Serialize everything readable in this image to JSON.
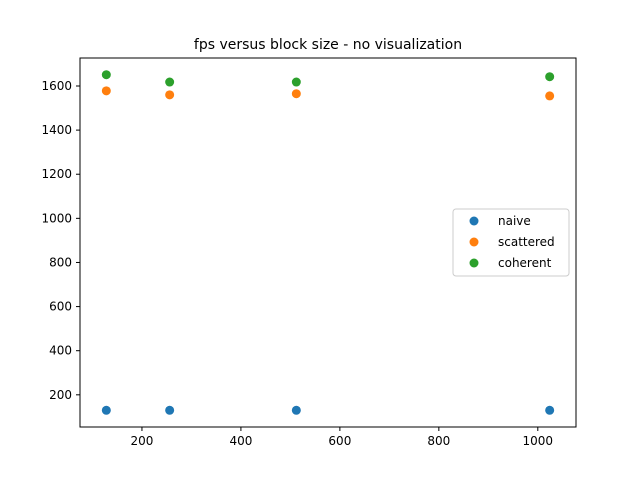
{
  "chart_data": {
    "type": "scatter",
    "title": "fps versus block size - no visualization",
    "xlabel": "",
    "ylabel": "",
    "xlim": [
      74.8,
      1077.2
    ],
    "ylim": [
      54.1,
      1726.9
    ],
    "xticks": [
      200,
      400,
      600,
      800,
      1000
    ],
    "yticks": [
      200,
      400,
      600,
      800,
      1000,
      1200,
      1400,
      1600
    ],
    "xtick_labels": [
      "200",
      "400",
      "600",
      "800",
      "1000"
    ],
    "ytick_labels": [
      "200",
      "400",
      "600",
      "800",
      "1000",
      "1200",
      "1400",
      "1600"
    ],
    "grid": false,
    "legend_position": "center-right",
    "x": [
      128,
      256,
      512,
      1024
    ],
    "series": [
      {
        "name": "naive",
        "color": "#1f77b4",
        "values": [
          130,
          130,
          130,
          130
        ]
      },
      {
        "name": "scattered",
        "color": "#ff7f0e",
        "values": [
          1578,
          1560,
          1565,
          1555
        ]
      },
      {
        "name": "coherent",
        "color": "#2ca02c",
        "values": [
          1651,
          1618,
          1618,
          1642
        ]
      }
    ]
  }
}
